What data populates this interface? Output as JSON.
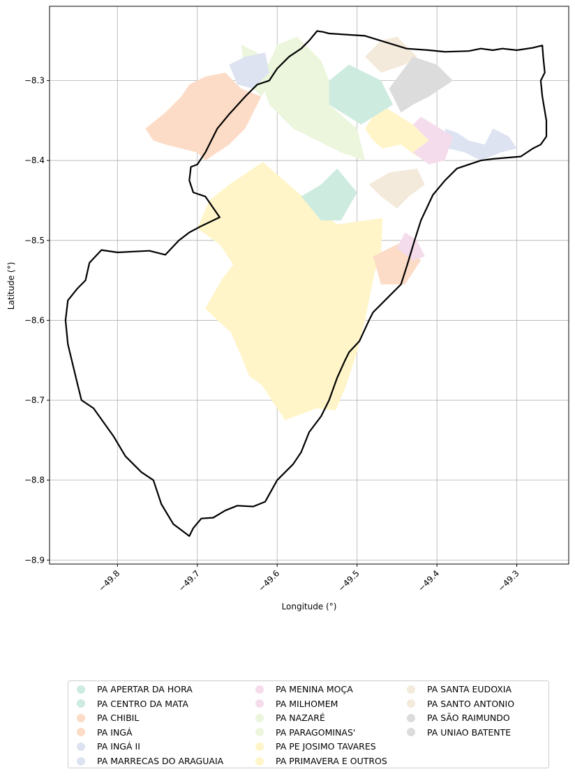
{
  "chart_data": {
    "type": "map",
    "xlabel": "Longitude (°)",
    "ylabel": "Latitude (°)",
    "xlim": [
      -49.885,
      -49.235
    ],
    "ylim": [
      -8.905,
      -8.207
    ],
    "x_ticks": [
      -49.8,
      -49.7,
      -49.6,
      -49.5,
      -49.4,
      -49.3
    ],
    "x_tick_labels": [
      "−49.8",
      "−49.7",
      "−49.6",
      "−49.5",
      "−49.4",
      "−49.3"
    ],
    "y_ticks": [
      -8.3,
      -8.4,
      -8.5,
      -8.6,
      -8.7,
      -8.8,
      -8.9
    ],
    "y_tick_labels": [
      "−8.3",
      "−8.4",
      "−8.5",
      "−8.6",
      "−8.7",
      "−8.8",
      "−8.9"
    ],
    "grid": true,
    "legend_position": "bottom-center",
    "legend_columns": 3,
    "categories": [
      {
        "name": "PA APERTAR DA HORA",
        "color": "#cdebdf"
      },
      {
        "name": "PA CENTRO DA MATA",
        "color": "#cdebdf"
      },
      {
        "name": "PA CHIBIL",
        "color": "#fcdcc6"
      },
      {
        "name": "PA INGÁ",
        "color": "#fcdcc6"
      },
      {
        "name": "PA INGÁ II",
        "color": "#dde3f0"
      },
      {
        "name": "PA MARRECAS DO ARAGUAIA",
        "color": "#dde3f0"
      },
      {
        "name": "PA MENINA MOÇA",
        "color": "#f5dcec"
      },
      {
        "name": "PA MILHOMEM",
        "color": "#f5dcec"
      },
      {
        "name": "PA NAZARÉ",
        "color": "#ecf6dc"
      },
      {
        "name": "PA PARAGOMINAS'",
        "color": "#ecf6dc"
      },
      {
        "name": "PA PE JOSIMO TAVARES",
        "color": "#fff5c9"
      },
      {
        "name": "PA PRIMAVERA E OUTROS",
        "color": "#fff5c9"
      },
      {
        "name": "PA SANTA EUDOXIA",
        "color": "#f4eadb"
      },
      {
        "name": "PA SANTO ANTONIO",
        "color": "#f4eadb"
      },
      {
        "name": "PA SÃO RAIMUNDO",
        "color": "#dcdcdc"
      },
      {
        "name": "PA UNIAO BATENTE",
        "color": "#dcdcdc"
      }
    ],
    "regions": [
      {
        "category": "PA PE JOSIMO TAVARES",
        "coords": [
          [
            -49.618,
            -8.402
          ],
          [
            -49.545,
            -8.465
          ],
          [
            -49.525,
            -8.48
          ],
          [
            -49.468,
            -8.472
          ],
          [
            -49.47,
            -8.52
          ],
          [
            -49.478,
            -8.54
          ],
          [
            -49.49,
            -8.6
          ],
          [
            -49.5,
            -8.64
          ],
          [
            -49.515,
            -8.685
          ],
          [
            -49.527,
            -8.713
          ],
          [
            -49.55,
            -8.71
          ],
          [
            -49.572,
            -8.718
          ],
          [
            -49.59,
            -8.725
          ],
          [
            -49.607,
            -8.7
          ],
          [
            -49.62,
            -8.68
          ],
          [
            -49.635,
            -8.67
          ],
          [
            -49.645,
            -8.645
          ],
          [
            -49.658,
            -8.615
          ],
          [
            -49.675,
            -8.6
          ],
          [
            -49.69,
            -8.585
          ],
          [
            -49.67,
            -8.55
          ],
          [
            -49.655,
            -8.53
          ],
          [
            -49.672,
            -8.505
          ],
          [
            -49.7,
            -8.485
          ],
          [
            -49.685,
            -8.45
          ],
          [
            -49.66,
            -8.43
          ]
        ]
      },
      {
        "category": "PA PRIMAVERA E OUTROS",
        "coords": [
          [
            -49.49,
            -8.36
          ],
          [
            -49.47,
            -8.33
          ],
          [
            -49.43,
            -8.355
          ],
          [
            -49.41,
            -8.375
          ],
          [
            -49.425,
            -8.395
          ],
          [
            -49.445,
            -8.38
          ],
          [
            -49.468,
            -8.385
          ],
          [
            -49.48,
            -8.375
          ]
        ]
      },
      {
        "category": "PA APERTAR DA HORA",
        "coords": [
          [
            -49.545,
            -8.43
          ],
          [
            -49.525,
            -8.41
          ],
          [
            -49.5,
            -8.44
          ],
          [
            -49.52,
            -8.475
          ],
          [
            -49.545,
            -8.475
          ],
          [
            -49.57,
            -8.445
          ]
        ]
      },
      {
        "category": "PA CENTRO DA MATA",
        "coords": [
          [
            -49.535,
            -8.3
          ],
          [
            -49.51,
            -8.28
          ],
          [
            -49.47,
            -8.3
          ],
          [
            -49.455,
            -8.33
          ],
          [
            -49.495,
            -8.355
          ],
          [
            -49.535,
            -8.33
          ]
        ]
      },
      {
        "category": "PA NAZARÉ",
        "coords": [
          [
            -49.6,
            -8.255
          ],
          [
            -49.575,
            -8.245
          ],
          [
            -49.545,
            -8.275
          ],
          [
            -49.535,
            -8.3
          ],
          [
            -49.535,
            -8.33
          ],
          [
            -49.5,
            -8.36
          ],
          [
            -49.49,
            -8.4
          ],
          [
            -49.52,
            -8.39
          ],
          [
            -49.56,
            -8.37
          ],
          [
            -49.58,
            -8.36
          ],
          [
            -49.61,
            -8.33
          ],
          [
            -49.62,
            -8.3
          ]
        ]
      },
      {
        "category": "PA PARAGOMINAS'",
        "coords": [
          [
            -49.645,
            -8.255
          ],
          [
            -49.625,
            -8.265
          ],
          [
            -49.6,
            -8.29
          ],
          [
            -49.62,
            -8.32
          ],
          [
            -49.64,
            -8.3
          ]
        ]
      },
      {
        "category": "PA CHIBIL",
        "coords": [
          [
            -49.71,
            -8.305
          ],
          [
            -49.69,
            -8.295
          ],
          [
            -49.665,
            -8.29
          ],
          [
            -49.645,
            -8.31
          ],
          [
            -49.62,
            -8.32
          ],
          [
            -49.64,
            -8.36
          ],
          [
            -49.66,
            -8.38
          ],
          [
            -49.69,
            -8.4
          ],
          [
            -49.7,
            -8.39
          ],
          [
            -49.72,
            -8.385
          ],
          [
            -49.74,
            -8.38
          ],
          [
            -49.755,
            -8.375
          ],
          [
            -49.765,
            -8.36
          ],
          [
            -49.74,
            -8.34
          ],
          [
            -49.73,
            -8.33
          ],
          [
            -49.72,
            -8.32
          ]
        ]
      },
      {
        "category": "PA INGÁ",
        "coords": [
          [
            -49.48,
            -8.52
          ],
          [
            -49.44,
            -8.5
          ],
          [
            -49.42,
            -8.525
          ],
          [
            -49.44,
            -8.555
          ],
          [
            -49.47,
            -8.555
          ]
        ]
      },
      {
        "category": "PA INGÁ II",
        "coords": [
          [
            -49.66,
            -8.28
          ],
          [
            -49.64,
            -8.27
          ],
          [
            -49.615,
            -8.265
          ],
          [
            -49.61,
            -8.29
          ],
          [
            -49.63,
            -8.31
          ],
          [
            -49.65,
            -8.305
          ]
        ]
      },
      {
        "category": "PA MARRECAS DO ARAGUAIA",
        "coords": [
          [
            -49.39,
            -8.36
          ],
          [
            -49.375,
            -8.365
          ],
          [
            -49.36,
            -8.375
          ],
          [
            -49.34,
            -8.38
          ],
          [
            -49.33,
            -8.36
          ],
          [
            -49.31,
            -8.37
          ],
          [
            -49.3,
            -8.385
          ],
          [
            -49.32,
            -8.39
          ],
          [
            -49.345,
            -8.4
          ],
          [
            -49.365,
            -8.39
          ],
          [
            -49.385,
            -8.385
          ]
        ]
      },
      {
        "category": "PA MENINA MOÇA",
        "coords": [
          [
            -49.44,
            -8.49
          ],
          [
            -49.425,
            -8.5
          ],
          [
            -49.415,
            -8.52
          ],
          [
            -49.43,
            -8.525
          ],
          [
            -49.45,
            -8.51
          ]
        ]
      },
      {
        "category": "PA MILHOMEM",
        "coords": [
          [
            -49.42,
            -8.345
          ],
          [
            -49.38,
            -8.37
          ],
          [
            -49.39,
            -8.4
          ],
          [
            -49.41,
            -8.405
          ],
          [
            -49.43,
            -8.39
          ],
          [
            -49.41,
            -8.375
          ],
          [
            -49.43,
            -8.355
          ]
        ]
      },
      {
        "category": "PA SANTA EUDOXIA",
        "coords": [
          [
            -49.46,
            -8.415
          ],
          [
            -49.485,
            -8.43
          ],
          [
            -49.47,
            -8.445
          ],
          [
            -49.45,
            -8.46
          ],
          [
            -49.435,
            -8.445
          ],
          [
            -49.415,
            -8.43
          ],
          [
            -49.425,
            -8.41
          ]
        ]
      },
      {
        "category": "PA SANTO ANTONIO",
        "coords": [
          [
            -49.47,
            -8.25
          ],
          [
            -49.45,
            -8.245
          ],
          [
            -49.425,
            -8.27
          ],
          [
            -49.44,
            -8.28
          ],
          [
            -49.47,
            -8.29
          ],
          [
            -49.49,
            -8.27
          ]
        ]
      },
      {
        "category": "PA SÃO RAIMUNDO",
        "coords": [
          [
            -49.43,
            -8.27
          ],
          [
            -49.4,
            -8.28
          ],
          [
            -49.38,
            -8.3
          ],
          [
            -49.41,
            -8.32
          ],
          [
            -49.43,
            -8.33
          ],
          [
            -49.46,
            -8.31
          ]
        ]
      },
      {
        "category": "PA UNIAO BATENTE",
        "coords": [
          [
            -49.46,
            -8.31
          ],
          [
            -49.445,
            -8.34
          ],
          [
            -49.43,
            -8.33
          ],
          [
            -49.44,
            -8.32
          ]
        ]
      }
    ],
    "outline": [
      [
        -49.55,
        -8.238
      ],
      [
        -49.543,
        -8.239
      ],
      [
        -49.535,
        -8.241
      ],
      [
        -49.49,
        -8.244
      ],
      [
        -49.438,
        -8.26
      ],
      [
        -49.41,
        -8.262
      ],
      [
        -49.39,
        -8.264
      ],
      [
        -49.36,
        -8.263
      ],
      [
        -49.345,
        -8.26
      ],
      [
        -49.33,
        -8.262
      ],
      [
        -49.318,
        -8.26
      ],
      [
        -49.3,
        -8.262
      ],
      [
        -49.28,
        -8.259
      ],
      [
        -49.268,
        -8.256
      ],
      [
        -49.267,
        -8.27
      ],
      [
        -49.265,
        -8.29
      ],
      [
        -49.27,
        -8.3
      ],
      [
        -49.268,
        -8.32
      ],
      [
        -49.263,
        -8.35
      ],
      [
        -49.263,
        -8.37
      ],
      [
        -49.27,
        -8.38
      ],
      [
        -49.28,
        -8.385
      ],
      [
        -49.295,
        -8.395
      ],
      [
        -49.33,
        -8.398
      ],
      [
        -49.345,
        -8.4
      ],
      [
        -49.36,
        -8.405
      ],
      [
        -49.375,
        -8.41
      ],
      [
        -49.39,
        -8.425
      ],
      [
        -49.405,
        -8.443
      ],
      [
        -49.42,
        -8.475
      ],
      [
        -49.428,
        -8.5
      ],
      [
        -49.437,
        -8.53
      ],
      [
        -49.445,
        -8.555
      ],
      [
        -49.465,
        -8.575
      ],
      [
        -49.48,
        -8.59
      ],
      [
        -49.485,
        -8.6
      ],
      [
        -49.497,
        -8.626
      ],
      [
        -49.51,
        -8.64
      ],
      [
        -49.515,
        -8.65
      ],
      [
        -49.525,
        -8.672
      ],
      [
        -49.535,
        -8.7
      ],
      [
        -49.545,
        -8.72
      ],
      [
        -49.56,
        -8.74
      ],
      [
        -49.57,
        -8.765
      ],
      [
        -49.58,
        -8.78
      ],
      [
        -49.6,
        -8.8
      ],
      [
        -49.615,
        -8.827
      ],
      [
        -49.63,
        -8.833
      ],
      [
        -49.65,
        -8.832
      ],
      [
        -49.665,
        -8.838
      ],
      [
        -49.68,
        -8.847
      ],
      [
        -49.695,
        -8.848
      ],
      [
        -49.705,
        -8.86
      ],
      [
        -49.71,
        -8.87
      ],
      [
        -49.73,
        -8.855
      ],
      [
        -49.745,
        -8.83
      ],
      [
        -49.755,
        -8.8
      ],
      [
        -49.77,
        -8.79
      ],
      [
        -49.79,
        -8.77
      ],
      [
        -49.805,
        -8.745
      ],
      [
        -49.83,
        -8.71
      ],
      [
        -49.845,
        -8.7
      ],
      [
        -49.85,
        -8.68
      ],
      [
        -49.862,
        -8.63
      ],
      [
        -49.865,
        -8.6
      ],
      [
        -49.862,
        -8.575
      ],
      [
        -49.85,
        -8.56
      ],
      [
        -49.84,
        -8.55
      ],
      [
        -49.835,
        -8.528
      ],
      [
        -49.82,
        -8.512
      ],
      [
        -49.8,
        -8.515
      ],
      [
        -49.76,
        -8.513
      ],
      [
        -49.74,
        -8.518
      ],
      [
        -49.723,
        -8.5
      ],
      [
        -49.71,
        -8.49
      ],
      [
        -49.695,
        -8.482
      ],
      [
        -49.672,
        -8.471
      ],
      [
        -49.69,
        -8.445
      ],
      [
        -49.705,
        -8.44
      ],
      [
        -49.71,
        -8.425
      ],
      [
        -49.708,
        -8.408
      ],
      [
        -49.7,
        -8.405
      ],
      [
        -49.69,
        -8.39
      ],
      [
        -49.675,
        -8.36
      ],
      [
        -49.66,
        -8.342
      ],
      [
        -49.64,
        -8.32
      ],
      [
        -49.625,
        -8.305
      ],
      [
        -49.61,
        -8.3
      ],
      [
        -49.6,
        -8.285
      ],
      [
        -49.585,
        -8.27
      ],
      [
        -49.57,
        -8.26
      ],
      [
        -49.56,
        -8.25
      ]
    ]
  }
}
